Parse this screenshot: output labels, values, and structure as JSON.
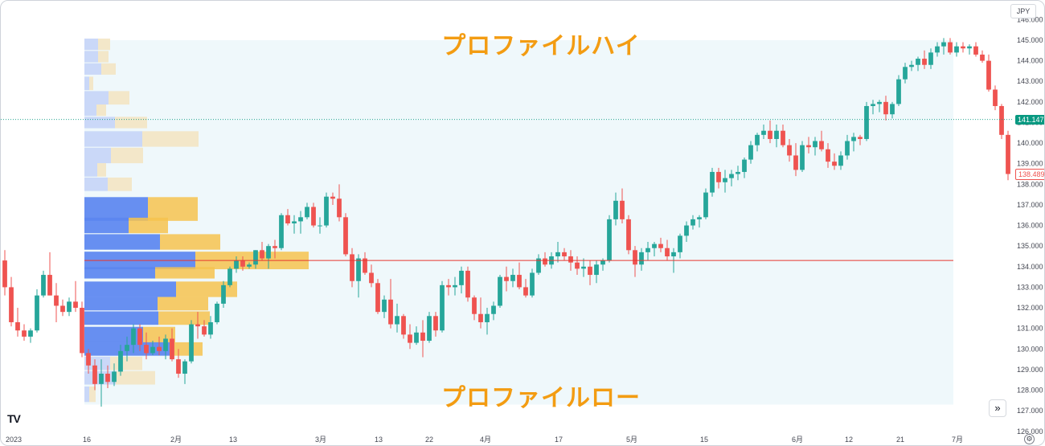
{
  "currency": "JPY",
  "scroll_button": "»",
  "settings_icon": "gear-icon",
  "logo_text": "TV",
  "annotations": {
    "profile_high": "プロファイルハイ",
    "profile_low": "プロファイルロー"
  },
  "last_price": "141.147",
  "marker_price": "138.489",
  "colors": {
    "up": "#26a69a",
    "down": "#ef5350",
    "poc_line": "#e8372f",
    "profile_up": "#5b85f0",
    "profile_down": "#f6c34f",
    "profile_up_light": "#c7d5f7",
    "profile_down_light": "#f3e4c0",
    "range_bg": "#eaf5fa",
    "annotation": "#f39c12"
  },
  "chart_data": {
    "type": "candlestick",
    "y_axis": {
      "ylim": [
        125.6,
        146.6
      ],
      "ticks": [
        "126.000",
        "127.000",
        "128.000",
        "129.000",
        "130.000",
        "131.000",
        "132.000",
        "133.000",
        "134.000",
        "135.000",
        "136.000",
        "137.000",
        "138.000",
        "139.000",
        "140.000",
        "141.000",
        "142.000",
        "143.000",
        "144.000",
        "145.000",
        "146.000"
      ]
    },
    "x_axis": {
      "labels": [
        "2023",
        "16",
        "2月",
        "13",
        "3月",
        "13",
        "22",
        "4月",
        "17",
        "5月",
        "15",
        "6月",
        "12",
        "21",
        "7月"
      ]
    },
    "poc_price": 134.3,
    "profile_high": 145.0,
    "profile_low": 127.3,
    "volume_profile": [
      {
        "price": 144.8,
        "up": 17,
        "down": 15,
        "in_value_area": false
      },
      {
        "price": 144.2,
        "up": 17,
        "down": 13,
        "in_value_area": false
      },
      {
        "price": 143.6,
        "up": 21,
        "down": 18,
        "in_value_area": false
      },
      {
        "price": 142.9,
        "up": 6,
        "down": 5,
        "in_value_area": false
      },
      {
        "price": 142.2,
        "up": 30,
        "down": 26,
        "in_value_area": false
      },
      {
        "price": 141.6,
        "up": 15,
        "down": 12,
        "in_value_area": false
      },
      {
        "price": 141.0,
        "up": 38,
        "down": 40,
        "in_value_area": false
      },
      {
        "price": 140.2,
        "up": 72,
        "down": 70,
        "in_value_area": false
      },
      {
        "price": 139.4,
        "up": 33,
        "down": 40,
        "in_value_area": false
      },
      {
        "price": 138.7,
        "up": 16,
        "down": 11,
        "in_value_area": false
      },
      {
        "price": 138.0,
        "up": 29,
        "down": 30,
        "in_value_area": false
      },
      {
        "price": 136.8,
        "up": 79,
        "down": 62,
        "in_value_area": true
      },
      {
        "price": 136.0,
        "up": 55,
        "down": 49,
        "in_value_area": true
      },
      {
        "price": 135.2,
        "up": 94,
        "down": 75,
        "in_value_area": true
      },
      {
        "price": 134.3,
        "up": 138,
        "down": 141,
        "in_value_area": true
      },
      {
        "price": 133.7,
        "up": 88,
        "down": 74,
        "in_value_area": true
      },
      {
        "price": 132.9,
        "up": 114,
        "down": 76,
        "in_value_area": true
      },
      {
        "price": 132.2,
        "up": 91,
        "down": 63,
        "in_value_area": true
      },
      {
        "price": 131.5,
        "up": 92,
        "down": 64,
        "in_value_area": true
      },
      {
        "price": 130.7,
        "up": 73,
        "down": 40,
        "in_value_area": true
      },
      {
        "price": 130.0,
        "up": 106,
        "down": 41,
        "in_value_area": true
      },
      {
        "price": 129.3,
        "up": 32,
        "down": 40,
        "in_value_area": false
      },
      {
        "price": 128.6,
        "up": 39,
        "down": 49,
        "in_value_area": false
      },
      {
        "price": 127.8,
        "up": 6,
        "down": 8,
        "in_value_area": false
      }
    ],
    "candles": [
      [
        134.3,
        134.8,
        132.6,
        133.0
      ],
      [
        133.0,
        133.5,
        131.1,
        131.3
      ],
      [
        131.3,
        132.0,
        130.6,
        130.9
      ],
      [
        130.9,
        131.2,
        130.4,
        130.6
      ],
      [
        130.6,
        131.0,
        130.3,
        130.9
      ],
      [
        130.9,
        132.9,
        130.8,
        132.6
      ],
      [
        132.6,
        133.8,
        132.5,
        133.6
      ],
      [
        133.6,
        134.7,
        132.6,
        132.6
      ],
      [
        132.6,
        133.2,
        131.3,
        132.1
      ],
      [
        132.1,
        132.4,
        131.6,
        131.8
      ],
      [
        131.8,
        132.5,
        131.6,
        132.3
      ],
      [
        132.3,
        133.3,
        131.8,
        132.0
      ],
      [
        132.0,
        132.3,
        129.6,
        129.8
      ],
      [
        129.8,
        130.0,
        128.8,
        129.2
      ],
      [
        129.2,
        129.5,
        128.0,
        128.3
      ],
      [
        128.3,
        129.5,
        127.2,
        128.8
      ],
      [
        128.8,
        129.2,
        128.1,
        128.4
      ],
      [
        128.4,
        129.3,
        128.2,
        128.9
      ],
      [
        128.9,
        130.2,
        128.7,
        129.9
      ],
      [
        129.9,
        130.6,
        129.4,
        130.2
      ],
      [
        130.2,
        131.2,
        129.8,
        131.0
      ],
      [
        131.0,
        131.2,
        129.9,
        130.2
      ],
      [
        130.2,
        130.8,
        129.5,
        129.8
      ],
      [
        129.8,
        130.4,
        129.7,
        130.1
      ],
      [
        130.1,
        130.6,
        129.7,
        129.9
      ],
      [
        129.9,
        130.7,
        129.5,
        130.5
      ],
      [
        130.5,
        131.0,
        129.4,
        129.5
      ],
      [
        129.5,
        130.0,
        128.6,
        128.8
      ],
      [
        128.8,
        129.5,
        128.3,
        129.4
      ],
      [
        129.4,
        131.4,
        129.3,
        131.2
      ],
      [
        131.2,
        131.8,
        130.5,
        131.1
      ],
      [
        131.1,
        131.4,
        130.6,
        130.7
      ],
      [
        130.7,
        131.6,
        130.5,
        131.3
      ],
      [
        131.3,
        132.3,
        131.2,
        132.2
      ],
      [
        132.2,
        133.3,
        132.0,
        133.1
      ],
      [
        133.1,
        134.0,
        133.0,
        133.9
      ],
      [
        133.9,
        134.5,
        133.7,
        134.3
      ],
      [
        134.3,
        134.5,
        133.8,
        134.0
      ],
      [
        134.0,
        134.2,
        133.9,
        134.1
      ],
      [
        134.1,
        134.8,
        133.9,
        134.8
      ],
      [
        134.8,
        135.2,
        134.3,
        134.4
      ],
      [
        134.4,
        135.1,
        133.9,
        135.0
      ],
      [
        135.0,
        135.3,
        134.4,
        134.9
      ],
      [
        134.9,
        136.6,
        134.8,
        136.5
      ],
      [
        136.5,
        136.8,
        136.0,
        136.1
      ],
      [
        136.1,
        136.5,
        135.6,
        136.2
      ],
      [
        136.2,
        136.7,
        135.6,
        136.4
      ],
      [
        136.4,
        137.1,
        136.3,
        136.9
      ],
      [
        136.9,
        137.1,
        135.9,
        136.0
      ],
      [
        136.0,
        136.4,
        135.6,
        136.0
      ],
      [
        136.0,
        137.6,
        135.9,
        137.4
      ],
      [
        137.4,
        137.6,
        137.0,
        137.3
      ],
      [
        137.3,
        138.0,
        136.2,
        136.4
      ],
      [
        136.4,
        136.6,
        134.5,
        134.6
      ],
      [
        134.6,
        134.9,
        133.0,
        133.3
      ],
      [
        133.3,
        134.6,
        132.5,
        134.4
      ],
      [
        134.4,
        134.7,
        133.6,
        133.7
      ],
      [
        133.7,
        134.1,
        133.0,
        133.2
      ],
      [
        133.2,
        133.4,
        131.7,
        131.8
      ],
      [
        131.8,
        132.6,
        131.5,
        132.4
      ],
      [
        132.4,
        133.4,
        131.0,
        131.2
      ],
      [
        131.2,
        132.2,
        130.8,
        131.6
      ],
      [
        131.6,
        131.7,
        130.5,
        130.7
      ],
      [
        130.7,
        131.2,
        130.0,
        130.3
      ],
      [
        130.3,
        131.1,
        130.2,
        130.8
      ],
      [
        130.8,
        131.4,
        129.6,
        130.4
      ],
      [
        130.4,
        131.8,
        130.3,
        131.6
      ],
      [
        131.6,
        131.8,
        130.6,
        130.9
      ],
      [
        130.9,
        133.3,
        130.8,
        133.1
      ],
      [
        133.1,
        133.4,
        132.6,
        133.0
      ],
      [
        133.0,
        133.5,
        132.6,
        133.1
      ],
      [
        133.1,
        134.0,
        132.7,
        133.8
      ],
      [
        133.8,
        134.0,
        132.3,
        132.5
      ],
      [
        132.5,
        132.6,
        131.4,
        131.7
      ],
      [
        131.7,
        132.5,
        131.0,
        131.3
      ],
      [
        131.3,
        132.0,
        130.7,
        131.7
      ],
      [
        131.7,
        132.3,
        131.4,
        132.1
      ],
      [
        132.1,
        133.6,
        132.0,
        133.5
      ],
      [
        133.5,
        134.0,
        132.8,
        133.3
      ],
      [
        133.3,
        133.9,
        133.0,
        133.6
      ],
      [
        133.6,
        134.2,
        132.9,
        133.0
      ],
      [
        133.0,
        133.4,
        132.5,
        132.6
      ],
      [
        132.6,
        133.9,
        132.5,
        133.7
      ],
      [
        133.7,
        134.6,
        133.6,
        134.4
      ],
      [
        134.4,
        134.7,
        134.0,
        134.1
      ],
      [
        134.1,
        134.7,
        133.9,
        134.5
      ],
      [
        134.5,
        135.2,
        134.2,
        134.7
      ],
      [
        134.7,
        134.9,
        134.3,
        134.5
      ],
      [
        134.5,
        134.8,
        133.8,
        134.2
      ],
      [
        134.2,
        134.5,
        133.6,
        133.9
      ],
      [
        133.9,
        134.4,
        133.5,
        134.0
      ],
      [
        134.0,
        134.3,
        133.1,
        133.6
      ],
      [
        133.6,
        134.3,
        133.2,
        134.1
      ],
      [
        134.1,
        134.4,
        133.8,
        134.3
      ],
      [
        134.3,
        136.5,
        134.2,
        136.3
      ],
      [
        136.3,
        137.6,
        136.0,
        137.2
      ],
      [
        137.2,
        137.8,
        136.1,
        136.3
      ],
      [
        136.3,
        136.5,
        134.6,
        134.8
      ],
      [
        134.8,
        135.0,
        133.5,
        134.1
      ],
      [
        134.1,
        134.9,
        133.8,
        134.7
      ],
      [
        134.7,
        135.2,
        134.3,
        134.9
      ],
      [
        134.9,
        135.2,
        134.5,
        135.1
      ],
      [
        135.1,
        135.4,
        134.7,
        134.9
      ],
      [
        134.9,
        135.3,
        134.3,
        134.5
      ],
      [
        134.5,
        134.9,
        133.7,
        134.7
      ],
      [
        134.7,
        135.6,
        134.4,
        135.5
      ],
      [
        135.5,
        136.2,
        135.2,
        136.0
      ],
      [
        136.0,
        136.5,
        135.8,
        136.3
      ],
      [
        136.3,
        136.5,
        135.9,
        136.4
      ],
      [
        136.4,
        137.8,
        136.3,
        137.6
      ],
      [
        137.6,
        138.8,
        137.4,
        138.6
      ],
      [
        138.6,
        138.8,
        137.8,
        138.1
      ],
      [
        138.1,
        138.7,
        137.6,
        138.3
      ],
      [
        138.3,
        138.7,
        137.9,
        138.5
      ],
      [
        138.5,
        138.9,
        138.2,
        138.6
      ],
      [
        138.6,
        139.3,
        138.3,
        139.2
      ],
      [
        139.2,
        140.1,
        139.0,
        139.9
      ],
      [
        139.9,
        140.5,
        139.6,
        140.4
      ],
      [
        140.4,
        140.9,
        140.2,
        140.6
      ],
      [
        140.6,
        141.1,
        140.0,
        140.2
      ],
      [
        140.2,
        140.9,
        139.8,
        140.6
      ],
      [
        140.6,
        140.9,
        139.8,
        139.9
      ],
      [
        139.9,
        140.2,
        139.1,
        139.4
      ],
      [
        139.4,
        140.0,
        138.4,
        138.7
      ],
      [
        138.7,
        140.1,
        138.6,
        139.9
      ],
      [
        139.9,
        140.3,
        139.5,
        139.8
      ],
      [
        139.8,
        140.3,
        139.4,
        140.1
      ],
      [
        140.1,
        140.6,
        139.6,
        139.7
      ],
      [
        139.7,
        140.0,
        138.8,
        139.1
      ],
      [
        139.1,
        139.5,
        138.7,
        138.9
      ],
      [
        138.9,
        139.6,
        138.7,
        139.4
      ],
      [
        139.4,
        140.4,
        139.2,
        140.1
      ],
      [
        140.1,
        140.5,
        139.6,
        140.3
      ],
      [
        140.3,
        140.4,
        139.9,
        140.2
      ],
      [
        140.2,
        142.0,
        140.1,
        141.8
      ],
      [
        141.8,
        142.1,
        141.4,
        141.9
      ],
      [
        141.9,
        142.1,
        141.5,
        142.0
      ],
      [
        142.0,
        142.3,
        141.1,
        141.4
      ],
      [
        141.4,
        142.0,
        141.2,
        141.9
      ],
      [
        141.9,
        143.3,
        141.8,
        143.1
      ],
      [
        143.1,
        143.9,
        142.9,
        143.7
      ],
      [
        143.7,
        144.0,
        143.5,
        143.8
      ],
      [
        143.8,
        144.2,
        143.5,
        144.1
      ],
      [
        144.1,
        144.5,
        143.6,
        143.8
      ],
      [
        143.8,
        144.6,
        143.6,
        144.4
      ],
      [
        144.4,
        144.9,
        144.2,
        144.7
      ],
      [
        144.7,
        145.1,
        144.3,
        144.9
      ],
      [
        144.9,
        145.1,
        144.3,
        144.4
      ],
      [
        144.4,
        144.9,
        144.2,
        144.7
      ],
      [
        144.7,
        144.9,
        144.4,
        144.6
      ],
      [
        144.6,
        144.8,
        144.3,
        144.7
      ],
      [
        144.7,
        144.9,
        144.2,
        144.3
      ],
      [
        144.3,
        144.5,
        143.9,
        144.0
      ],
      [
        144.0,
        144.3,
        142.5,
        142.6
      ],
      [
        142.6,
        142.8,
        141.6,
        141.8
      ],
      [
        141.8,
        141.9,
        140.2,
        140.4
      ],
      [
        140.4,
        140.6,
        138.2,
        138.5
      ]
    ]
  }
}
